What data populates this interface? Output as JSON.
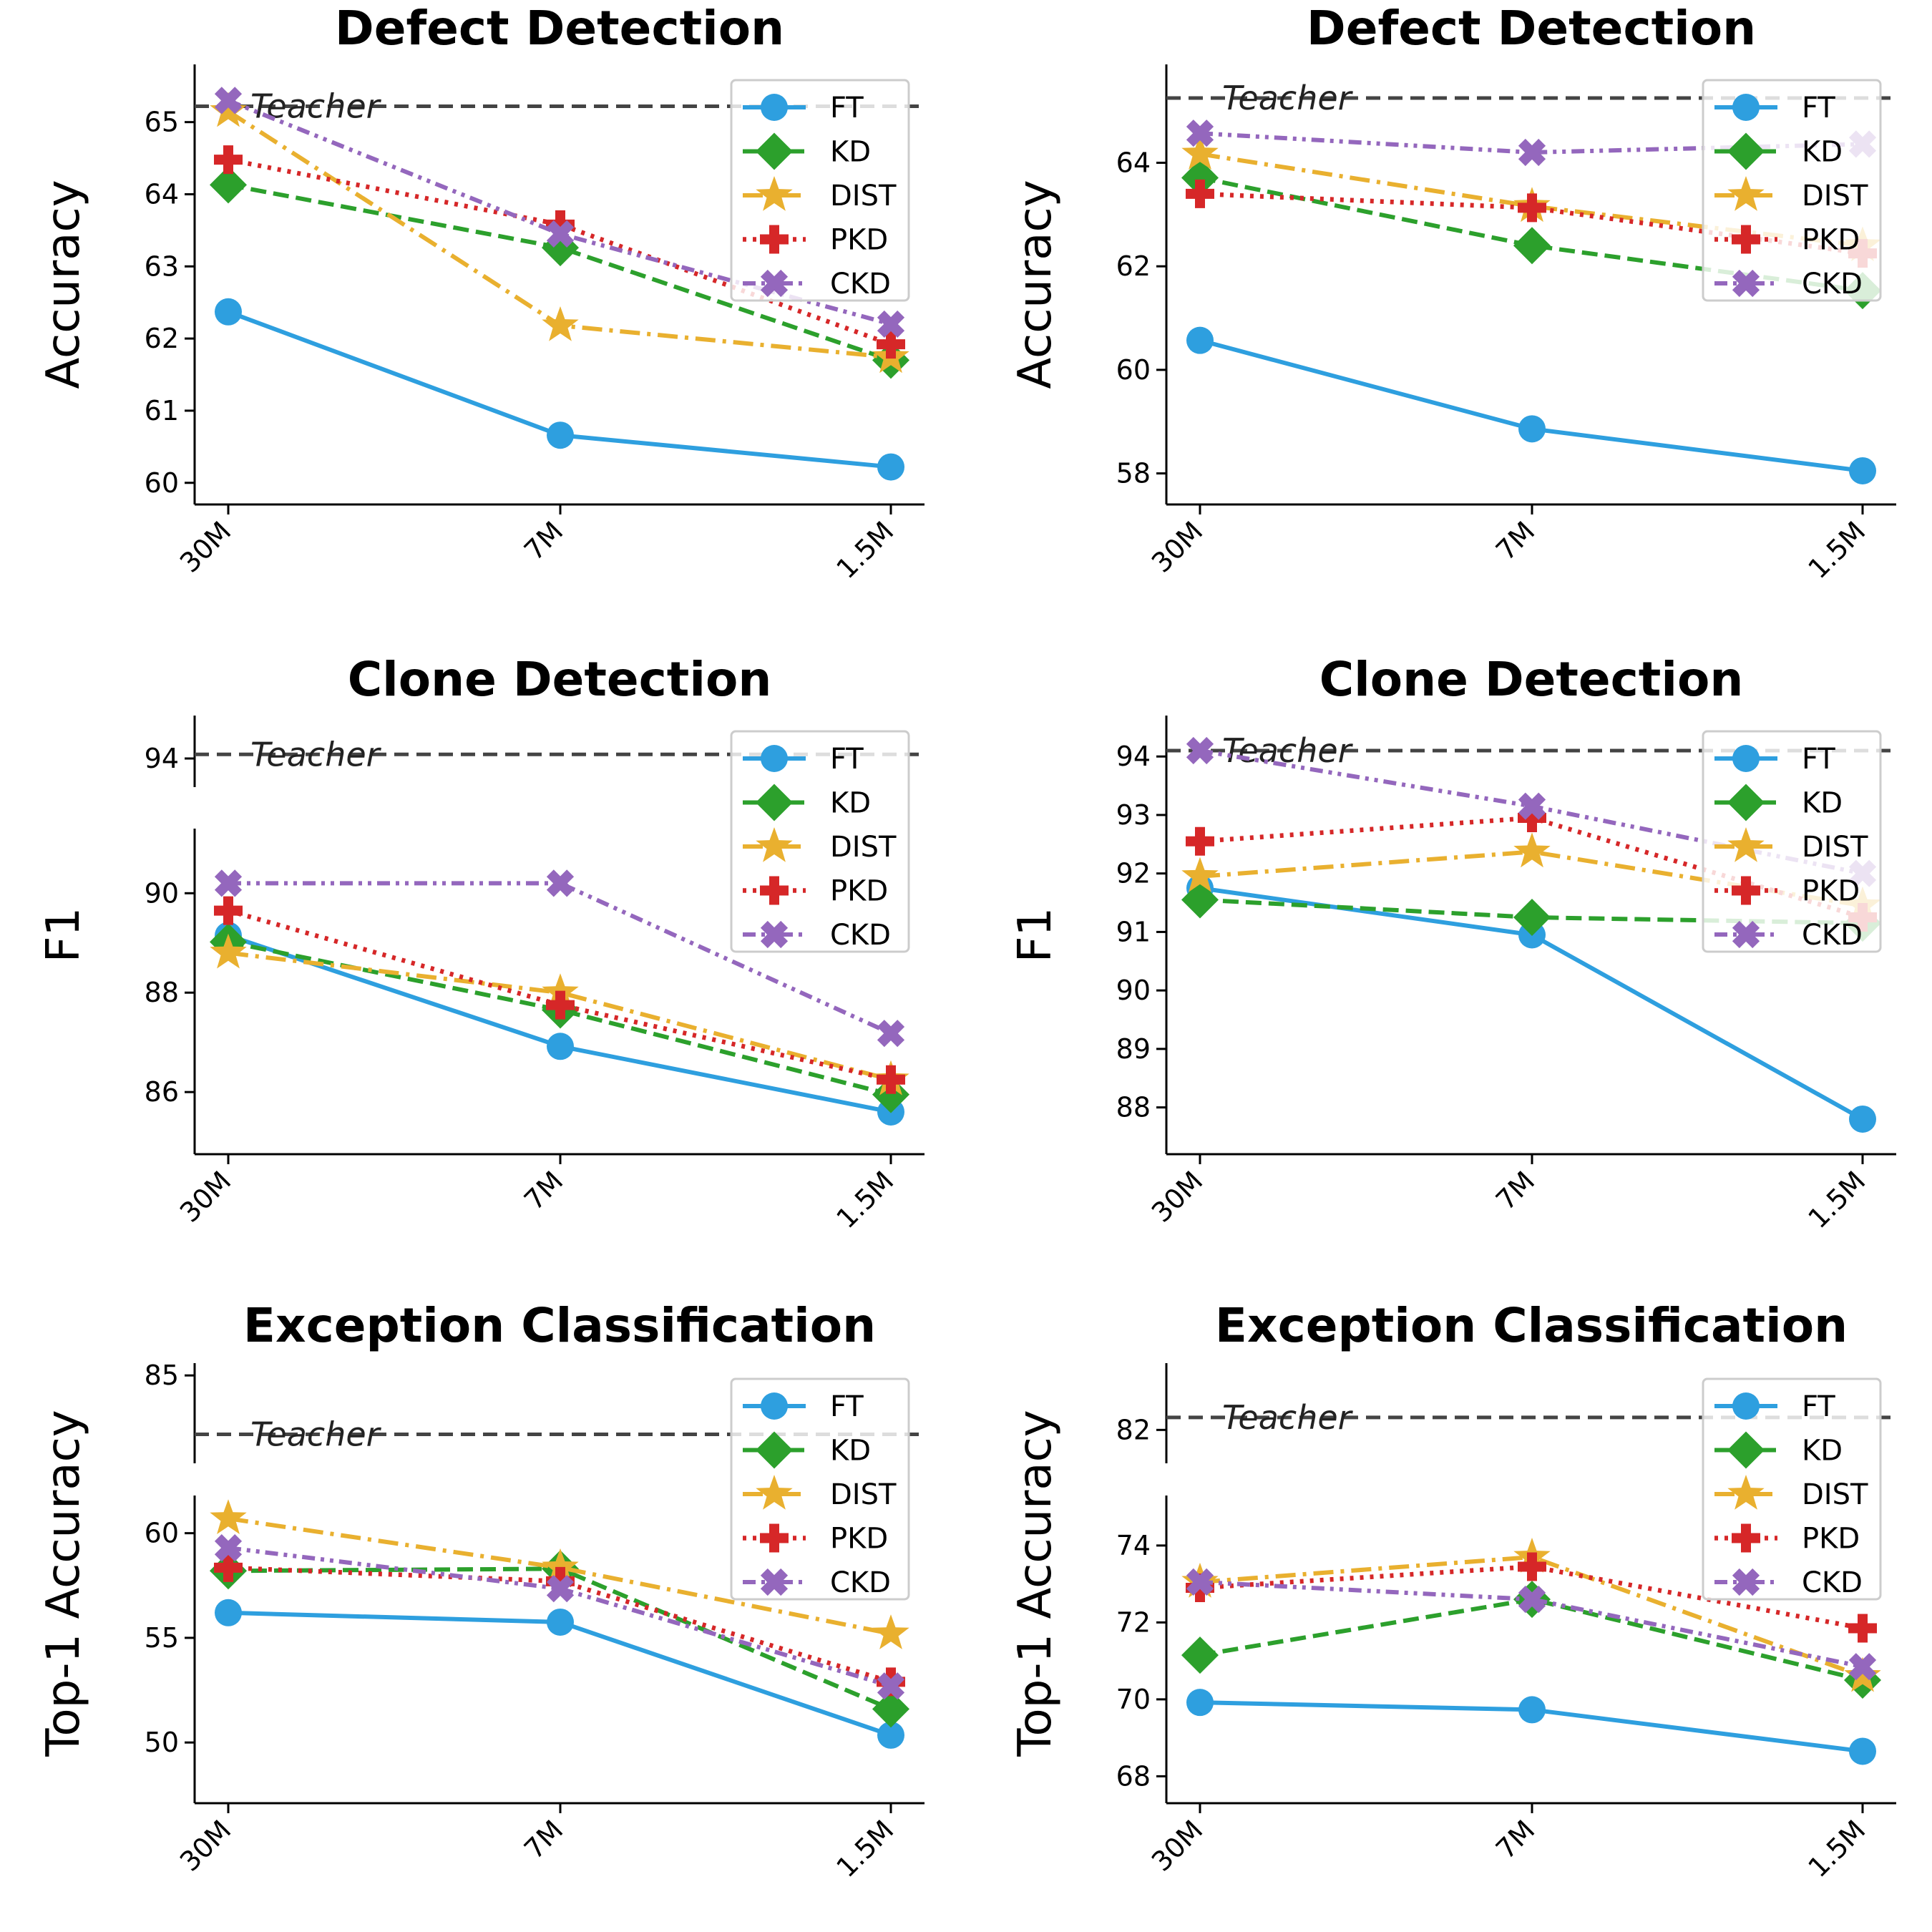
{
  "colors": {
    "FT": "#2e9fdf",
    "KD": "#2ca02c",
    "DIST": "#e9b02f",
    "PKD": "#d62728",
    "CKD": "#9467bd",
    "teacher": "#444444"
  },
  "chart_data": [
    {
      "type": "line",
      "title": "Defect Detection",
      "ylabel": "Accuracy",
      "categories": [
        "30M",
        "7M",
        "1.5M"
      ],
      "ylim": [
        59.7,
        65.8
      ],
      "yticks": [
        "60",
        "61",
        "62",
        "63",
        "64",
        "65"
      ],
      "broken_axis": false,
      "teacher": 65.22,
      "teacher_label": "Teacher",
      "legend": "top-right",
      "series": [
        {
          "name": "FT",
          "values": [
            62.37,
            60.66,
            60.22
          ]
        },
        {
          "name": "KD",
          "values": [
            64.13,
            63.26,
            61.7
          ]
        },
        {
          "name": "DIST",
          "values": [
            65.15,
            62.18,
            61.74
          ]
        },
        {
          "name": "PKD",
          "values": [
            64.48,
            63.58,
            61.92
          ]
        },
        {
          "name": "CKD",
          "values": [
            65.3,
            63.45,
            62.2
          ]
        }
      ]
    },
    {
      "type": "line",
      "title": "Defect Detection",
      "ylabel": "Accuracy",
      "categories": [
        "30M",
        "7M",
        "1.5M"
      ],
      "ylim": [
        57.4,
        65.9
      ],
      "yticks": [
        "58",
        "60",
        "62",
        "64"
      ],
      "broken_axis": false,
      "teacher": 65.25,
      "teacher_label": "Teacher",
      "legend": "top-right",
      "series": [
        {
          "name": "FT",
          "values": [
            60.57,
            58.86,
            58.05
          ]
        },
        {
          "name": "KD",
          "values": [
            63.71,
            62.4,
            61.53
          ]
        },
        {
          "name": "DIST",
          "values": [
            64.17,
            63.16,
            62.4
          ]
        },
        {
          "name": "PKD",
          "values": [
            63.4,
            63.13,
            62.25
          ]
        },
        {
          "name": "CKD",
          "values": [
            64.57,
            64.2,
            64.36
          ]
        }
      ]
    },
    {
      "type": "line",
      "title": "Clone Detection",
      "ylabel": "F1",
      "categories": [
        "30M",
        "7M",
        "1.5M"
      ],
      "ylim": [
        84.75,
        91.3
      ],
      "ylim_top": [
        93.3,
        95.05
      ],
      "yticks": [
        "86",
        "88",
        "90"
      ],
      "yticks_top": [
        "94"
      ],
      "broken_axis": true,
      "teacher": 94.1,
      "teacher_label": "Teacher",
      "legend": "top-right",
      "series": [
        {
          "name": "FT",
          "values": [
            89.15,
            86.92,
            85.6
          ]
        },
        {
          "name": "KD",
          "values": [
            89.02,
            87.65,
            85.95
          ]
        },
        {
          "name": "DIST",
          "values": [
            88.8,
            88.0,
            86.25
          ]
        },
        {
          "name": "PKD",
          "values": [
            89.65,
            87.75,
            86.25
          ]
        },
        {
          "name": "CKD",
          "values": [
            90.2,
            90.2,
            87.18
          ]
        }
      ]
    },
    {
      "type": "line",
      "title": "Clone Detection",
      "ylabel": "F1",
      "categories": [
        "30M",
        "7M",
        "1.5M"
      ],
      "ylim": [
        87.2,
        94.7
      ],
      "yticks": [
        "88",
        "89",
        "90",
        "91",
        "92",
        "93",
        "94"
      ],
      "broken_axis": false,
      "teacher": 94.1,
      "teacher_label": "Teacher",
      "legend": "top-right",
      "series": [
        {
          "name": "FT",
          "values": [
            91.75,
            90.95,
            87.8
          ]
        },
        {
          "name": "KD",
          "values": [
            91.55,
            91.25,
            91.15
          ]
        },
        {
          "name": "DIST",
          "values": [
            91.95,
            92.37,
            91.45
          ]
        },
        {
          "name": "PKD",
          "values": [
            92.55,
            92.95,
            91.25
          ]
        },
        {
          "name": "CKD",
          "values": [
            94.1,
            93.15,
            92.0
          ]
        }
      ]
    },
    {
      "type": "line",
      "title": "Exception Classification",
      "ylabel": "Top-1 Accuracy",
      "categories": [
        "30M",
        "7M",
        "1.5M"
      ],
      "ylim": [
        47.1,
        61.8
      ],
      "ylim_top": [
        80.0,
        85.7
      ],
      "yticks": [
        "50",
        "55",
        "60"
      ],
      "yticks_top": [
        "85"
      ],
      "broken_axis": true,
      "teacher": 81.65,
      "teacher_label": "Teacher",
      "legend": "top-right",
      "series": [
        {
          "name": "FT",
          "values": [
            56.2,
            55.75,
            50.35
          ]
        },
        {
          "name": "KD",
          "values": [
            58.2,
            58.3,
            51.6
          ]
        },
        {
          "name": "DIST",
          "values": [
            60.7,
            58.35,
            55.2
          ]
        },
        {
          "name": "PKD",
          "values": [
            58.35,
            57.7,
            52.9
          ]
        },
        {
          "name": "CKD",
          "values": [
            59.3,
            57.35,
            52.7
          ]
        }
      ]
    },
    {
      "type": "line",
      "title": "Exception Classification",
      "ylabel": "Top-1 Accuracy",
      "categories": [
        "30M",
        "7M",
        "1.5M"
      ],
      "ylim": [
        67.3,
        75.3
      ],
      "ylim_top": [
        81.2,
        83.6
      ],
      "yticks": [
        "68",
        "70",
        "72",
        "74"
      ],
      "yticks_top": [
        "82"
      ],
      "broken_axis": true,
      "teacher": 82.3,
      "teacher_label": "Teacher",
      "legend": "top-right",
      "series": [
        {
          "name": "FT",
          "values": [
            69.92,
            69.73,
            68.65
          ]
        },
        {
          "name": "KD",
          "values": [
            71.15,
            72.6,
            70.5
          ]
        },
        {
          "name": "DIST",
          "values": [
            73.05,
            73.7,
            70.6
          ]
        },
        {
          "name": "PKD",
          "values": [
            72.9,
            73.45,
            71.85
          ]
        },
        {
          "name": "CKD",
          "values": [
            73.05,
            72.6,
            70.85
          ]
        }
      ]
    }
  ]
}
